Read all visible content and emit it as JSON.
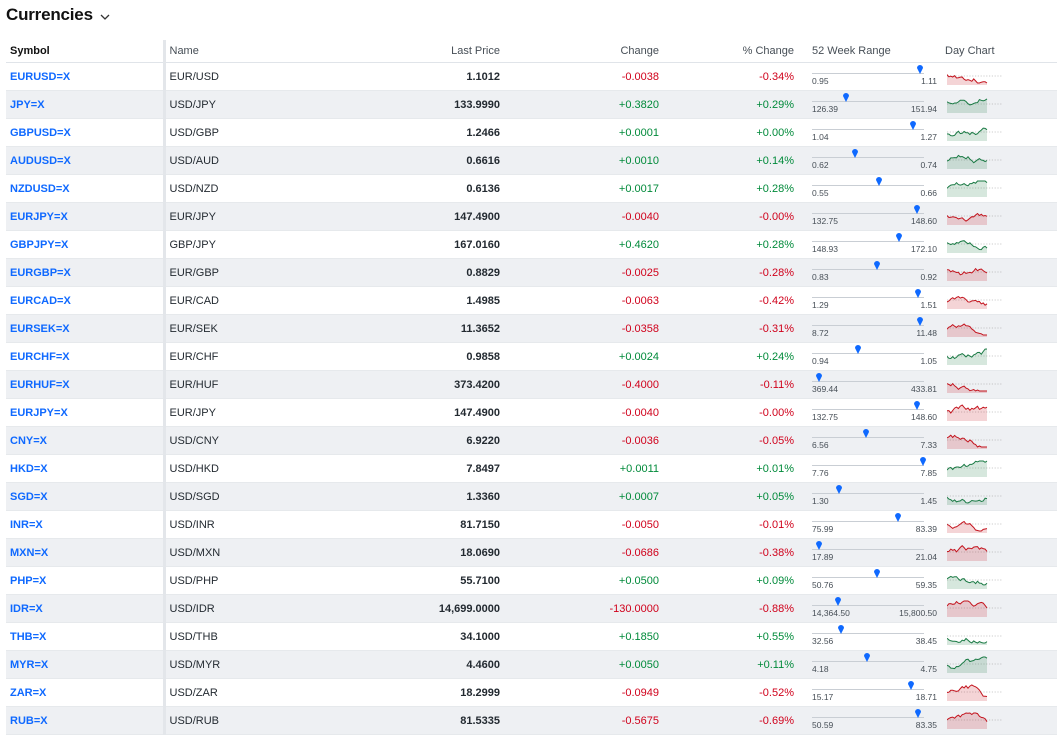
{
  "page": {
    "title": "Currencies"
  },
  "columns": {
    "symbol": "Symbol",
    "name": "Name",
    "last_price": "Last Price",
    "change": "Change",
    "pct_change": "% Change",
    "range": "52 Week Range",
    "day_chart": "Day Chart"
  },
  "colors": {
    "link": "#0f69ff",
    "positive": "#008a3a",
    "negative": "#d0011b",
    "stripe": "#eef0f3"
  },
  "rows": [
    {
      "symbol": "EURUSD=X",
      "name": "EUR/USD",
      "price": "1.1012",
      "change": "-0.0038",
      "pct": "-0.34%",
      "low": "0.95",
      "high": "1.11",
      "pos": 0.96,
      "dir": "neg"
    },
    {
      "symbol": "JPY=X",
      "name": "USD/JPY",
      "price": "133.9990",
      "change": "+0.3820",
      "pct": "+0.29%",
      "low": "126.39",
      "high": "151.94",
      "pos": 0.3,
      "dir": "pos"
    },
    {
      "symbol": "GBPUSD=X",
      "name": "USD/GBP",
      "price": "1.2466",
      "change": "+0.0001",
      "pct": "+0.00%",
      "low": "1.04",
      "high": "1.27",
      "pos": 0.9,
      "dir": "pos"
    },
    {
      "symbol": "AUDUSD=X",
      "name": "USD/AUD",
      "price": "0.6616",
      "change": "+0.0010",
      "pct": "+0.14%",
      "low": "0.62",
      "high": "0.74",
      "pos": 0.38,
      "dir": "pos"
    },
    {
      "symbol": "NZDUSD=X",
      "name": "USD/NZD",
      "price": "0.6136",
      "change": "+0.0017",
      "pct": "+0.28%",
      "low": "0.55",
      "high": "0.66",
      "pos": 0.6,
      "dir": "pos"
    },
    {
      "symbol": "EURJPY=X",
      "name": "EUR/JPY",
      "price": "147.4900",
      "change": "-0.0040",
      "pct": "-0.00%",
      "low": "132.75",
      "high": "148.60",
      "pos": 0.94,
      "dir": "neg"
    },
    {
      "symbol": "GBPJPY=X",
      "name": "GBP/JPY",
      "price": "167.0160",
      "change": "+0.4620",
      "pct": "+0.28%",
      "low": "148.93",
      "high": "172.10",
      "pos": 0.78,
      "dir": "pos"
    },
    {
      "symbol": "EURGBP=X",
      "name": "EUR/GBP",
      "price": "0.8829",
      "change": "-0.0025",
      "pct": "-0.28%",
      "low": "0.83",
      "high": "0.92",
      "pos": 0.58,
      "dir": "neg"
    },
    {
      "symbol": "EURCAD=X",
      "name": "EUR/CAD",
      "price": "1.4985",
      "change": "-0.0063",
      "pct": "-0.42%",
      "low": "1.29",
      "high": "1.51",
      "pos": 0.95,
      "dir": "neg"
    },
    {
      "symbol": "EURSEK=X",
      "name": "EUR/SEK",
      "price": "11.3652",
      "change": "-0.0358",
      "pct": "-0.31%",
      "low": "8.72",
      "high": "11.48",
      "pos": 0.96,
      "dir": "neg"
    },
    {
      "symbol": "EURCHF=X",
      "name": "EUR/CHF",
      "price": "0.9858",
      "change": "+0.0024",
      "pct": "+0.24%",
      "low": "0.94",
      "high": "1.05",
      "pos": 0.41,
      "dir": "pos"
    },
    {
      "symbol": "EURHUF=X",
      "name": "EUR/HUF",
      "price": "373.4200",
      "change": "-0.4000",
      "pct": "-0.11%",
      "low": "369.44",
      "high": "433.81",
      "pos": 0.06,
      "dir": "neg"
    },
    {
      "symbol": "EURJPY=X",
      "name": "EUR/JPY",
      "price": "147.4900",
      "change": "-0.0040",
      "pct": "-0.00%",
      "low": "132.75",
      "high": "148.60",
      "pos": 0.94,
      "dir": "neg"
    },
    {
      "symbol": "CNY=X",
      "name": "USD/CNY",
      "price": "6.9220",
      "change": "-0.0036",
      "pct": "-0.05%",
      "low": "6.56",
      "high": "7.33",
      "pos": 0.48,
      "dir": "neg"
    },
    {
      "symbol": "HKD=X",
      "name": "USD/HKD",
      "price": "7.8497",
      "change": "+0.0011",
      "pct": "+0.01%",
      "low": "7.76",
      "high": "7.85",
      "pos": 0.99,
      "dir": "pos"
    },
    {
      "symbol": "SGD=X",
      "name": "USD/SGD",
      "price": "1.3360",
      "change": "+0.0007",
      "pct": "+0.05%",
      "low": "1.30",
      "high": "1.45",
      "pos": 0.24,
      "dir": "pos"
    },
    {
      "symbol": "INR=X",
      "name": "USD/INR",
      "price": "81.7150",
      "change": "-0.0050",
      "pct": "-0.01%",
      "low": "75.99",
      "high": "83.39",
      "pos": 0.77,
      "dir": "neg"
    },
    {
      "symbol": "MXN=X",
      "name": "USD/MXN",
      "price": "18.0690",
      "change": "-0.0686",
      "pct": "-0.38%",
      "low": "17.89",
      "high": "21.04",
      "pos": 0.06,
      "dir": "neg"
    },
    {
      "symbol": "PHP=X",
      "name": "USD/PHP",
      "price": "55.7100",
      "change": "+0.0500",
      "pct": "+0.09%",
      "low": "50.76",
      "high": "59.35",
      "pos": 0.58,
      "dir": "pos"
    },
    {
      "symbol": "IDR=X",
      "name": "USD/IDR",
      "price": "14,699.0000",
      "change": "-130.0000",
      "pct": "-0.88%",
      "low": "14,364.50",
      "high": "15,800.50",
      "pos": 0.23,
      "dir": "neg"
    },
    {
      "symbol": "THB=X",
      "name": "USD/THB",
      "price": "34.1000",
      "change": "+0.1850",
      "pct": "+0.55%",
      "low": "32.56",
      "high": "38.45",
      "pos": 0.26,
      "dir": "pos"
    },
    {
      "symbol": "MYR=X",
      "name": "USD/MYR",
      "price": "4.4600",
      "change": "+0.0050",
      "pct": "+0.11%",
      "low": "4.18",
      "high": "4.75",
      "pos": 0.49,
      "dir": "pos"
    },
    {
      "symbol": "ZAR=X",
      "name": "USD/ZAR",
      "price": "18.2999",
      "change": "-0.0949",
      "pct": "-0.52%",
      "low": "15.17",
      "high": "18.71",
      "pos": 0.88,
      "dir": "neg"
    },
    {
      "symbol": "RUB=X",
      "name": "USD/RUB",
      "price": "81.5335",
      "change": "-0.5675",
      "pct": "-0.69%",
      "low": "50.59",
      "high": "83.35",
      "pos": 0.95,
      "dir": "neg"
    }
  ]
}
